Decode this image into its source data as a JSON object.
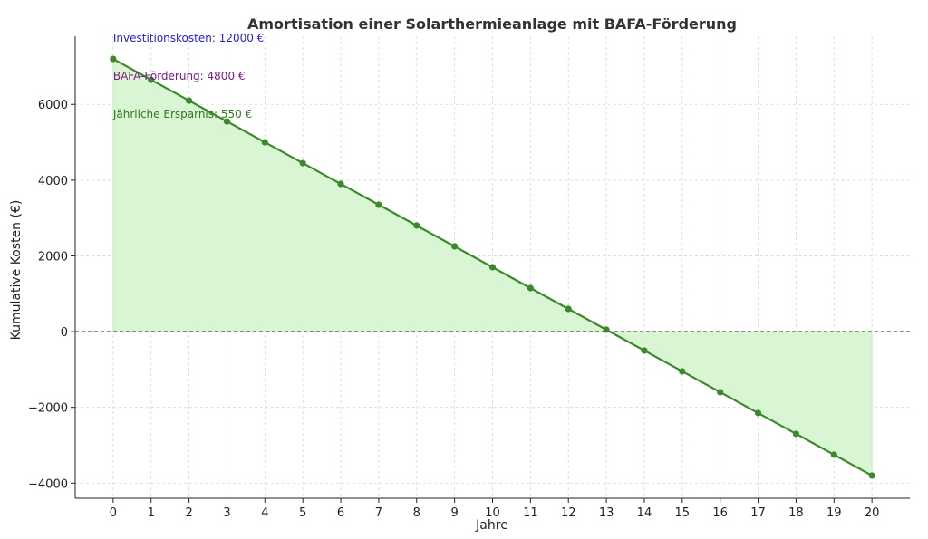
{
  "chart_data": {
    "type": "line",
    "title": "Amortisation einer Solarthermieanlage mit BAFA-Förderung",
    "xlabel": "Jahre",
    "ylabel": "Kumulative Kosten (€)",
    "x": [
      0,
      1,
      2,
      3,
      4,
      5,
      6,
      7,
      8,
      9,
      10,
      11,
      12,
      13,
      14,
      15,
      16,
      17,
      18,
      19,
      20
    ],
    "values": [
      7200,
      6650,
      6100,
      5550,
      5000,
      4450,
      3900,
      3350,
      2800,
      2250,
      1700,
      1150,
      600,
      50,
      -500,
      -1050,
      -1600,
      -2150,
      -2700,
      -3250,
      -3800
    ],
    "xlim": [
      -1,
      21
    ],
    "ylim": [
      -4400,
      7800
    ],
    "yticks": [
      -4000,
      -2000,
      0,
      2000,
      4000,
      6000
    ],
    "ytick_labels": [
      "−4000",
      "−2000",
      "0",
      "2000",
      "4000",
      "6000"
    ],
    "grid": true,
    "zero_line": true,
    "colors": {
      "line": "#3a8a2a",
      "fill": "#d9f5d3",
      "zero": "#222222"
    },
    "annotations": [
      {
        "text": "Investitionskosten: 12000 €",
        "x": 0,
        "y": 7750,
        "color": "#1f1fe0"
      },
      {
        "text": "BAFA-Förderung: 4800 €",
        "x": 0,
        "y": 6750,
        "color": "#7a1a8a"
      },
      {
        "text": "Jährliche Ersparnis: 550 €",
        "x": 0,
        "y": 5740,
        "color": "#2e7a1e"
      }
    ]
  }
}
